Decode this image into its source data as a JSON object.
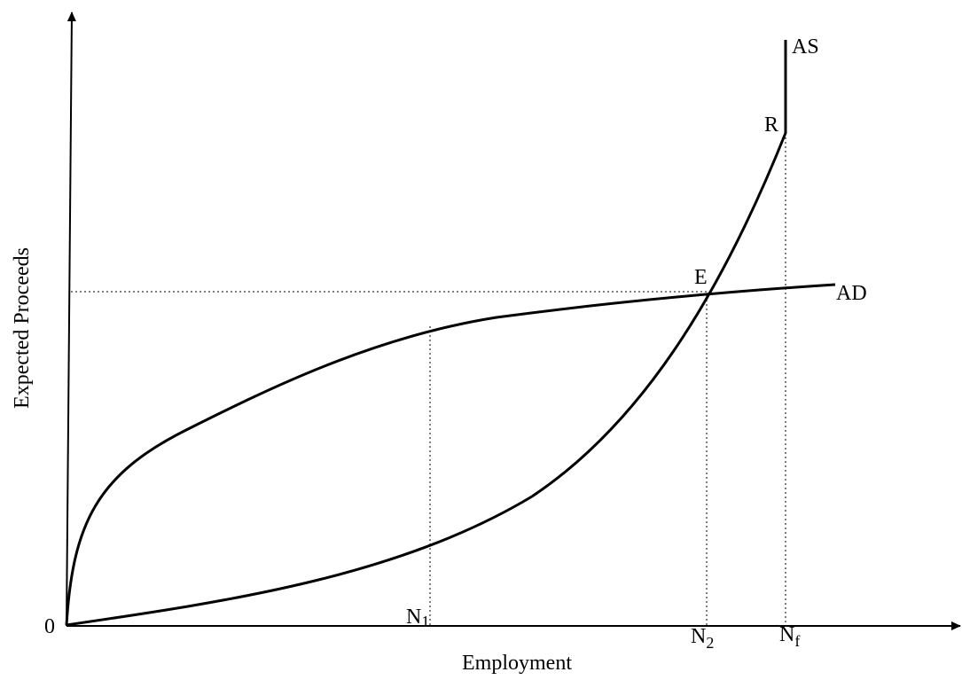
{
  "origin": "0",
  "y_axis_label": "Expected Proceeds",
  "x_axis_label": "Employment",
  "curves": {
    "ad": "AD",
    "as": "AS"
  },
  "points": {
    "e": "E",
    "r": "R"
  },
  "x_markers": [
    {
      "label": "N",
      "sub": "1"
    },
    {
      "label": "N",
      "sub": "2"
    },
    {
      "label": "N",
      "sub": "f"
    }
  ]
}
